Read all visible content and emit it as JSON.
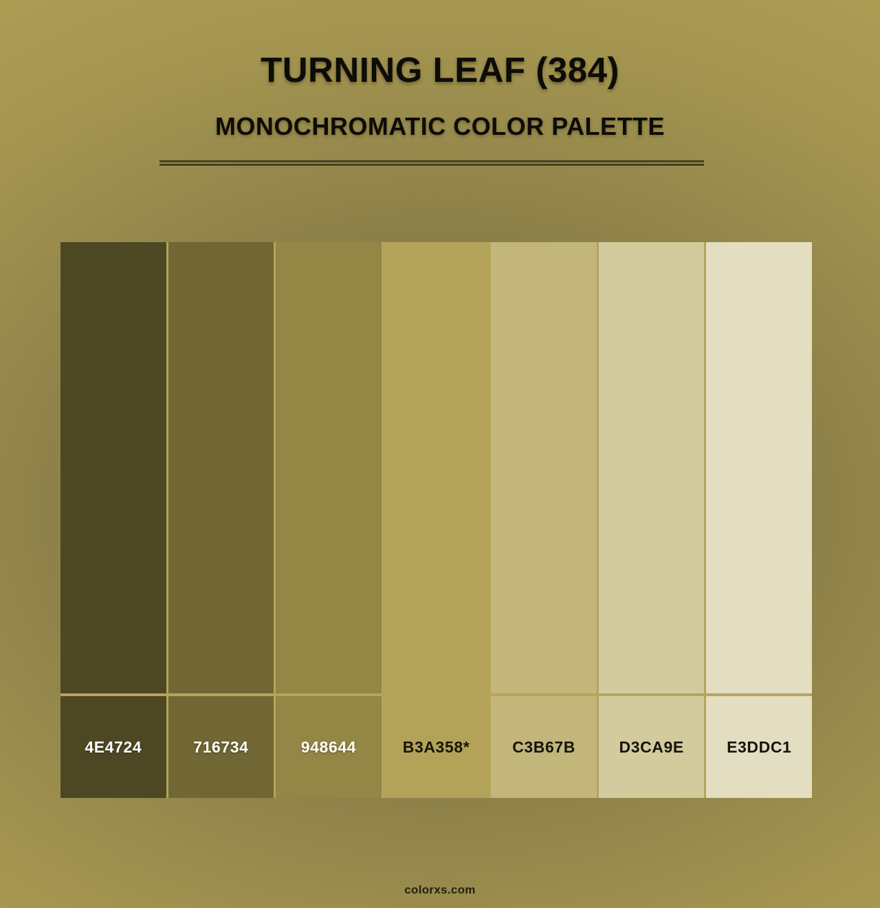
{
  "header": {
    "title": "TURNING LEAF (384)",
    "subtitle": "MONOCHROMATIC COLOR PALETTE"
  },
  "palette": {
    "swatches": [
      {
        "label": "4E4724",
        "hex": "#4E4724",
        "text_color": "#FFFFFF"
      },
      {
        "label": "716734",
        "hex": "#716734",
        "text_color": "#FFFFFF"
      },
      {
        "label": "948644",
        "hex": "#948644",
        "text_color": "#FFFFFF"
      },
      {
        "label": "B3A358*",
        "hex": "#B3A358",
        "text_color": "#16140B"
      },
      {
        "label": "C3B67B",
        "hex": "#C3B67B",
        "text_color": "#16140B"
      },
      {
        "label": "D3CA9E",
        "hex": "#D3CA9E",
        "text_color": "#16140B"
      },
      {
        "label": "E3DDC1",
        "hex": "#E3DDC1",
        "text_color": "#16140B"
      }
    ]
  },
  "footer": {
    "site": "colorxs.com"
  },
  "theme": {
    "background_center": "#786E3F",
    "background_edge": "#AB9C54",
    "divider_color": "#454021",
    "grid_gap_color": "#B4A55D",
    "heading_color": "#0D0C07"
  }
}
